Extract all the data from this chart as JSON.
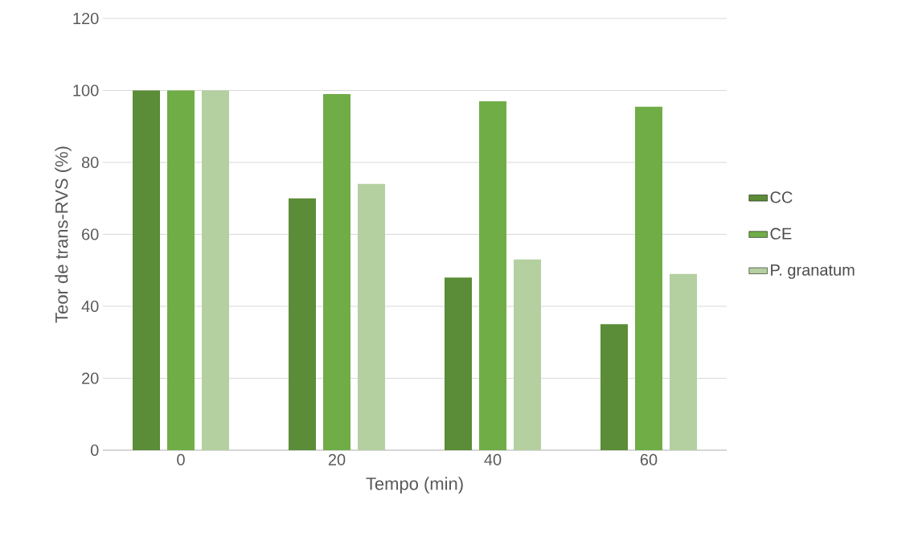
{
  "chart_data": {
    "type": "bar",
    "xlabel": "Tempo (min)",
    "ylabel": "Teor de trans-RVS (%)",
    "categories": [
      "0",
      "20",
      "40",
      "60"
    ],
    "series": [
      {
        "name": "CC",
        "color": "#5b8c37",
        "values": [
          100,
          70,
          48,
          35
        ]
      },
      {
        "name": "CE",
        "color": "#70ad47",
        "values": [
          100,
          99,
          97,
          95.5
        ]
      },
      {
        "name": "P. granatum",
        "color": "#b4cfa0",
        "values": [
          100,
          74,
          53,
          49
        ]
      }
    ],
    "ylim": [
      0,
      120
    ],
    "yticks": [
      0,
      20,
      40,
      60,
      80,
      100,
      120
    ],
    "grid": "y",
    "legend": "right"
  }
}
